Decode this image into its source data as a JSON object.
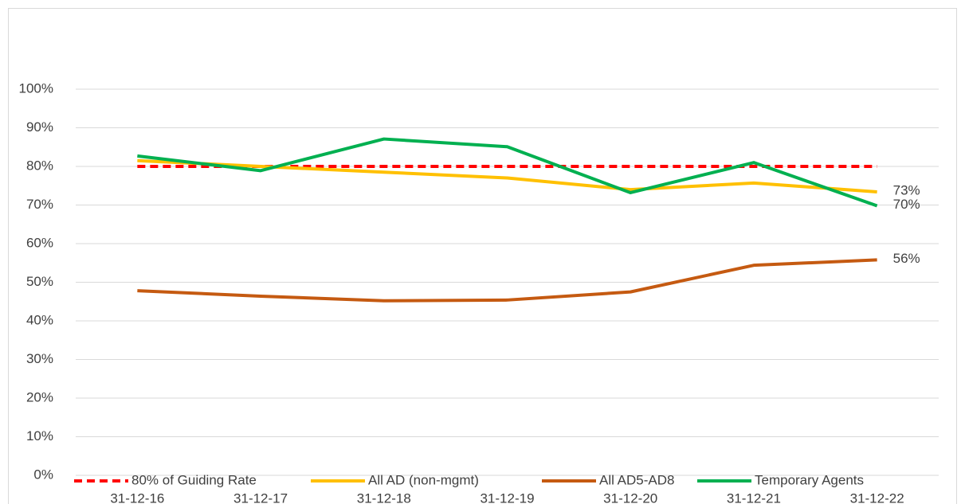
{
  "chart_data": {
    "type": "line",
    "categories": [
      "31-12-16",
      "31-12-17",
      "31-12-18",
      "31-12-19",
      "31-12-20",
      "31-12-21",
      "31-12-22"
    ],
    "ylim": [
      0,
      100
    ],
    "yticks": [
      {
        "value": 0,
        "label": "0%"
      },
      {
        "value": 10,
        "label": "10%"
      },
      {
        "value": 20,
        "label": "20%"
      },
      {
        "value": 30,
        "label": "30%"
      },
      {
        "value": 40,
        "label": "40%"
      },
      {
        "value": 50,
        "label": "50%"
      },
      {
        "value": 60,
        "label": "60%"
      },
      {
        "value": 70,
        "label": "70%"
      },
      {
        "value": 80,
        "label": "80%"
      },
      {
        "value": 90,
        "label": "90%"
      },
      {
        "value": 100,
        "label": "100%"
      }
    ],
    "grid": true,
    "legend": "bottom",
    "series": [
      {
        "name": "80% of Guiding Rate",
        "color": "#ff0000",
        "dashed": true,
        "values": [
          80,
          80,
          80,
          80,
          80,
          80,
          80
        ]
      },
      {
        "name": "All AD (non-mgmt)",
        "color": "#ffc000",
        "values": [
          81.5,
          80,
          78.5,
          77,
          74,
          75.7,
          73.4
        ],
        "value_labels": [
          null,
          null,
          null,
          null,
          null,
          null,
          "73%"
        ]
      },
      {
        "name": "All AD5-AD8",
        "color": "#c55a11",
        "values": [
          47.8,
          46.4,
          45.2,
          45.4,
          47.5,
          54.4,
          55.8
        ],
        "value_labels": [
          null,
          null,
          null,
          null,
          null,
          null,
          "56%"
        ]
      },
      {
        "name": "Temporary Agents",
        "color": "#00b050",
        "values": [
          82.7,
          78.9,
          87.1,
          85.1,
          73.2,
          81,
          69.8
        ],
        "value_labels": [
          null,
          null,
          null,
          null,
          null,
          null,
          "70%"
        ]
      }
    ]
  }
}
